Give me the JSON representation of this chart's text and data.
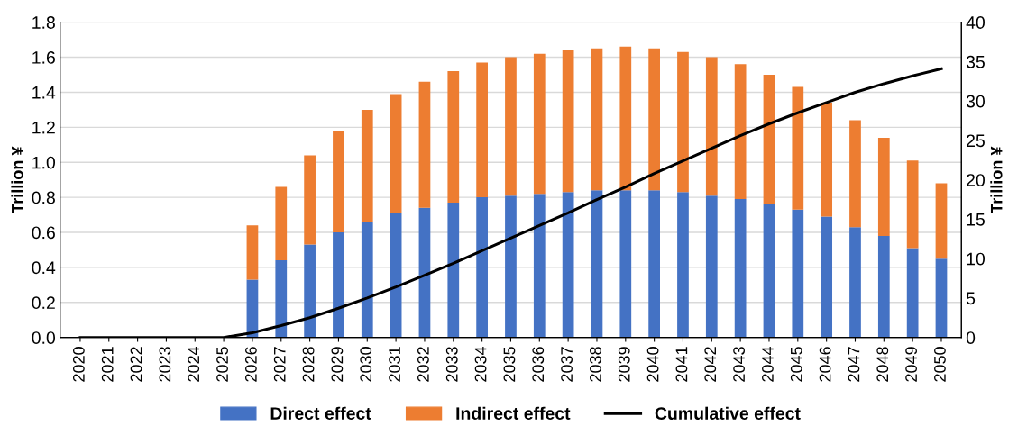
{
  "chart_data": {
    "type": "bar",
    "stacked": true,
    "ylabel": "Trillion ¥",
    "y2label": "Trillion ¥",
    "categories": [
      "2020",
      "2021",
      "2022",
      "2023",
      "2024",
      "2025",
      "2026",
      "2027",
      "2028",
      "2029",
      "2030",
      "2031",
      "2032",
      "2033",
      "2034",
      "2035",
      "2036",
      "2037",
      "2038",
      "2039",
      "2040",
      "2041",
      "2042",
      "2043",
      "2044",
      "2045",
      "2046",
      "2047",
      "2048",
      "2049",
      "2050"
    ],
    "series": [
      {
        "name": "Direct effect",
        "color": "#4472c4",
        "values": [
          0,
          0,
          0,
          0,
          0,
          0,
          0.33,
          0.44,
          0.53,
          0.6,
          0.66,
          0.71,
          0.74,
          0.77,
          0.8,
          0.81,
          0.82,
          0.83,
          0.84,
          0.84,
          0.84,
          0.83,
          0.81,
          0.79,
          0.76,
          0.73,
          0.69,
          0.63,
          0.58,
          0.51,
          0.45
        ]
      },
      {
        "name": "Indirect effect",
        "color": "#ed7d31",
        "values": [
          0,
          0,
          0,
          0,
          0,
          0,
          0.31,
          0.42,
          0.51,
          0.58,
          0.64,
          0.68,
          0.72,
          0.75,
          0.77,
          0.79,
          0.8,
          0.81,
          0.81,
          0.82,
          0.81,
          0.8,
          0.79,
          0.77,
          0.74,
          0.7,
          0.65,
          0.61,
          0.56,
          0.5,
          0.43
        ]
      },
      {
        "name": "Cumulative effect",
        "type": "line",
        "axis": "y2",
        "color": "#000000",
        "values": [
          0,
          0,
          0,
          0,
          0,
          0,
          0.6,
          1.5,
          2.5,
          3.7,
          5.0,
          6.4,
          7.9,
          9.4,
          11.0,
          12.6,
          14.2,
          15.8,
          17.5,
          19.1,
          20.8,
          22.4,
          24.0,
          25.6,
          27.1,
          28.5,
          29.8,
          31.1,
          32.2,
          33.2,
          34.1
        ]
      }
    ],
    "ylim": [
      0,
      1.8
    ],
    "yticks": [
      {
        "value": 0,
        "label": "0.0"
      },
      {
        "value": 0.2,
        "label": "0.2"
      },
      {
        "value": 0.4,
        "label": "0.4"
      },
      {
        "value": 0.6,
        "label": "0.6"
      },
      {
        "value": 0.8,
        "label": "0.8"
      },
      {
        "value": 1.0,
        "label": "1.0"
      },
      {
        "value": 1.2,
        "label": "1.2"
      },
      {
        "value": 1.4,
        "label": "1.4"
      },
      {
        "value": 1.6,
        "label": "1.6"
      },
      {
        "value": 1.8,
        "label": "1.8"
      }
    ],
    "y2lim": [
      0,
      40
    ],
    "y2ticks": [
      0,
      5,
      10,
      15,
      20,
      25,
      30,
      35,
      40
    ],
    "grid": "y",
    "legend": "bottom",
    "marker": "none",
    "line_style": "solid"
  }
}
